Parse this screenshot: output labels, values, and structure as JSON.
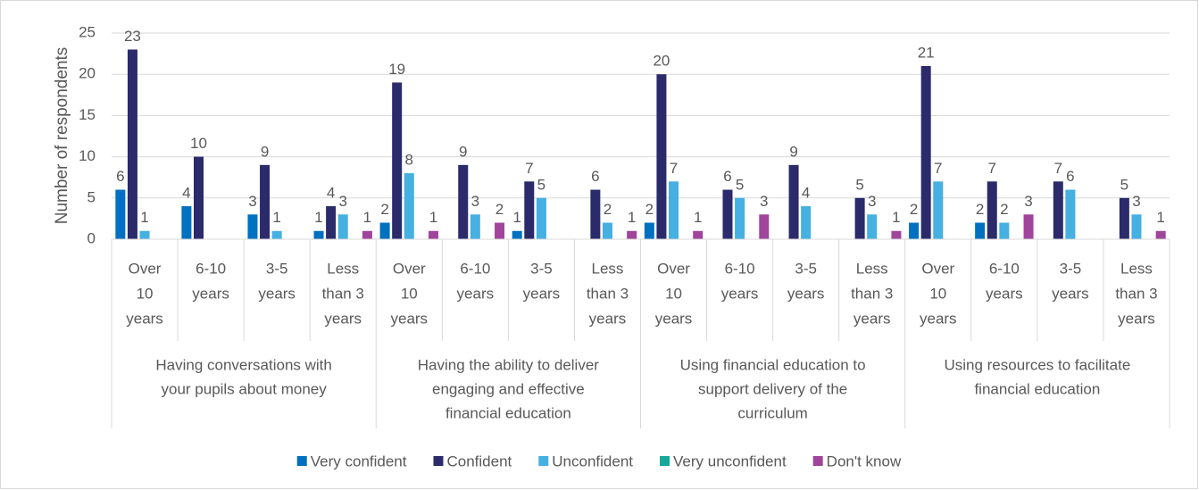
{
  "chart_data": {
    "type": "bar",
    "y_label": "Number of respondents",
    "ylim": [
      0,
      25
    ],
    "yticks": [
      0,
      5,
      10,
      15,
      20,
      25
    ],
    "grid": true,
    "legend": "bottom",
    "groups": [
      {
        "label": [
          "Having conversations with",
          "your pupils about money"
        ],
        "categories": [
          [
            "Over",
            "10",
            "years"
          ],
          [
            "6-10",
            "years"
          ],
          [
            "3-5",
            "years"
          ],
          [
            "Less",
            "than 3",
            "years"
          ]
        ]
      },
      {
        "label": [
          "Having the ability to deliver",
          "engaging and effective",
          "financial education"
        ],
        "categories": [
          [
            "Over",
            "10",
            "years"
          ],
          [
            "6-10",
            "years"
          ],
          [
            "3-5",
            "years"
          ],
          [
            "Less",
            "than 3",
            "years"
          ]
        ]
      },
      {
        "label": [
          "Using financial education to",
          "support delivery of the",
          "curriculum"
        ],
        "categories": [
          [
            "Over",
            "10",
            "years"
          ],
          [
            "6-10",
            "years"
          ],
          [
            "3-5",
            "years"
          ],
          [
            "Less",
            "than 3",
            "years"
          ]
        ]
      },
      {
        "label": [
          "Using resources to facilitate",
          "financial education"
        ],
        "categories": [
          [
            "Over",
            "10",
            "years"
          ],
          [
            "6-10",
            "years"
          ],
          [
            "3-5",
            "years"
          ],
          [
            "Less",
            "than 3",
            "years"
          ]
        ]
      }
    ],
    "series": [
      {
        "name": "Very confident",
        "color": "#0070c0",
        "values": [
          6,
          4,
          3,
          1,
          2,
          null,
          1,
          null,
          2,
          null,
          null,
          null,
          2,
          2,
          null,
          null
        ]
      },
      {
        "name": "Confident",
        "color": "#2b2a6b",
        "values": [
          23,
          10,
          9,
          4,
          19,
          9,
          7,
          6,
          20,
          6,
          9,
          5,
          21,
          7,
          7,
          5
        ]
      },
      {
        "name": "Unconfident",
        "color": "#45b0e1",
        "values": [
          1,
          null,
          1,
          3,
          8,
          3,
          5,
          2,
          7,
          5,
          4,
          3,
          7,
          2,
          6,
          3
        ]
      },
      {
        "name": "Very unconfident",
        "color": "#17a89a",
        "values": [
          null,
          null,
          null,
          null,
          null,
          null,
          null,
          null,
          null,
          null,
          null,
          null,
          null,
          null,
          null,
          null
        ]
      },
      {
        "name": "Don't know",
        "color": "#a0449c",
        "values": [
          null,
          null,
          null,
          1,
          1,
          2,
          null,
          1,
          1,
          3,
          null,
          1,
          null,
          3,
          null,
          1
        ]
      }
    ]
  }
}
